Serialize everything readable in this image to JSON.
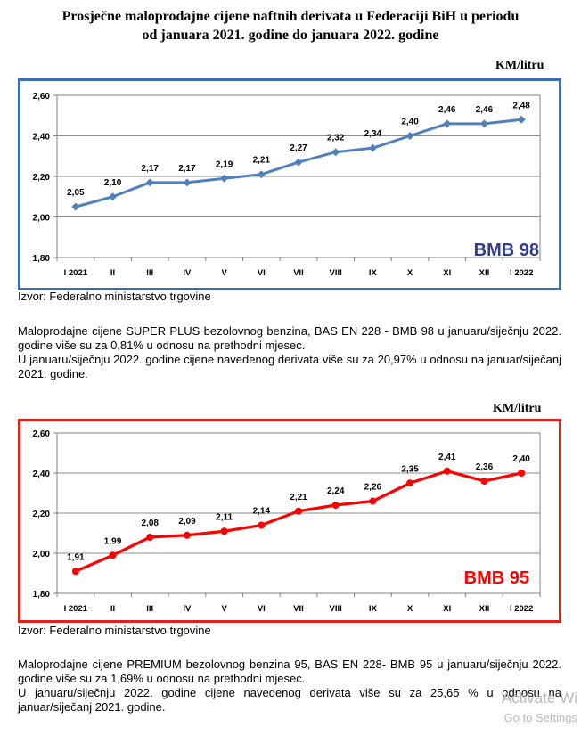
{
  "title": {
    "line1": "Prosječne maloprodajne cijene naftnih derivata u Federaciji BiH u periodu",
    "line2": "od januara 2021. godine do januara 2022. godine"
  },
  "chart_data": [
    {
      "type": "line",
      "unit_label": "KM/litru",
      "label": "BMB 98",
      "categories": [
        "I 2021",
        "II",
        "III",
        "IV",
        "V",
        "VI",
        "VII",
        "VIII",
        "IX",
        "X",
        "XI",
        "XII",
        "I 2022"
      ],
      "values": [
        2.05,
        2.1,
        2.17,
        2.17,
        2.19,
        2.21,
        2.27,
        2.32,
        2.34,
        2.4,
        2.46,
        2.46,
        2.48
      ],
      "value_labels": [
        "2,05",
        "2,10",
        "2,17",
        "2,17",
        "2,19",
        "2,21",
        "2,27",
        "2,32",
        "2,34",
        "2,40",
        "2,46",
        "2,46",
        "2,48"
      ],
      "yticks": [
        "1,80",
        "2,00",
        "2,20",
        "2,40",
        "2,60"
      ],
      "ylim": [
        1.8,
        2.6
      ],
      "grid": true,
      "color": "#4f81bd",
      "frame_color": "#3b6fb0",
      "label_color": "#2f3f8f",
      "marker": "diamond"
    },
    {
      "type": "line",
      "unit_label": "KM/litru",
      "label": "BMB 95",
      "categories": [
        "I 2021",
        "II",
        "III",
        "IV",
        "V",
        "VI",
        "VII",
        "VIII",
        "IX",
        "X",
        "XI",
        "XII",
        "I 2022"
      ],
      "values": [
        1.91,
        1.99,
        2.08,
        2.09,
        2.11,
        2.14,
        2.21,
        2.24,
        2.26,
        2.35,
        2.41,
        2.36,
        2.4
      ],
      "value_labels": [
        "1,91",
        "1,99",
        "2,08",
        "2,09",
        "2,11",
        "2,14",
        "2,21",
        "2,24",
        "2,26",
        "2,35",
        "2,41",
        "2,36",
        "2,40"
      ],
      "yticks": [
        "1,80",
        "2,00",
        "2,20",
        "2,40",
        "2,60"
      ],
      "ylim": [
        1.8,
        2.6
      ],
      "grid": true,
      "color": "#ff0000",
      "frame_color": "#e0221f",
      "label_color": "#ff0000",
      "marker": "circle"
    }
  ],
  "source_1": "Izvor: Federalno ministarstvo trgovine",
  "paragraph_1": {
    "line1": "Maloprodajne cijene SUPER PLUS bezolovnog benzina, BAS EN 228 - BMB 98 u januaru/siječnju 2022. godine više su za  0,81% u odnosu na prethodni mjesec.",
    "line2": "U januaru/siječnju 2022. godine cijene navedenog derivata više su za 20,97% u odnosu na januar/siječanj 2021. godine."
  },
  "source_2": "Izvor: Federalno ministarstvo trgovine",
  "paragraph_2": {
    "line1": "Maloprodajne cijene PREMIUM bezolovnog benzina 95, BAS EN 228- BMB 95 u januaru/siječnju 2022. godine više su za 1,69% u odnosu na prethodni mjesec.",
    "line2": "U januaru/siječnju 2022. godine cijene navedenog derivata više su za 25,65 % u odnosu na januar/siječanj 2021. godine."
  },
  "watermark": {
    "line1": "Activate Wi",
    "line2": "Go to Settings"
  }
}
